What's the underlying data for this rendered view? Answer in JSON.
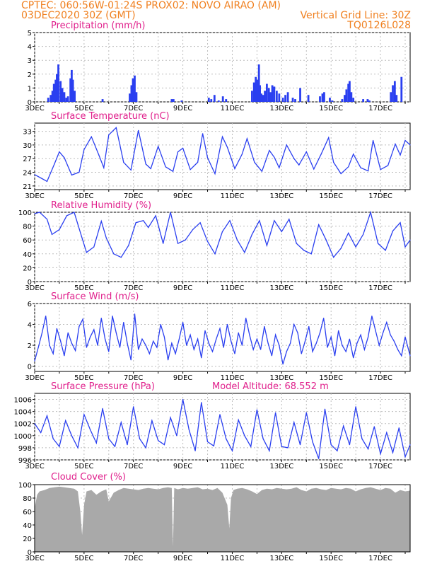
{
  "header": {
    "line1_left": "CPTEC:   060:56W-01:24S   PROX02: NOVO AIRAO (AM)",
    "line2_left": "03DEC2020 30Z (GMT)",
    "line2_right": "Vertical Grid Line: 30Z",
    "line3_right": "TQ0126L028"
  },
  "colors": {
    "header": "#f08020",
    "title": "#e0208c",
    "series": "#2a3ff0",
    "cloud": "#a9a9a9",
    "grid": "#bdbdbd"
  },
  "chart_data": [
    {
      "id": "precip",
      "type": "bar",
      "title": "Precipitation (mm/h)",
      "extra_label": "",
      "ylim": [
        0,
        5
      ],
      "yticks": [
        0,
        1,
        2,
        3,
        4,
        5
      ],
      "x_day_range": [
        3,
        18.2
      ],
      "xtick_labels": [
        "3DEC",
        "5DEC",
        "7DEC",
        "9DEC",
        "11DEC",
        "13DEC",
        "15DEC",
        "17DEC"
      ],
      "xtick_days": [
        3,
        5,
        7,
        9,
        11,
        13,
        15,
        17
      ],
      "x": [
        3.55,
        3.65,
        3.72,
        3.78,
        3.85,
        3.9,
        3.96,
        4.05,
        4.12,
        4.2,
        4.28,
        4.35,
        4.45,
        4.5,
        4.55,
        4.62,
        5.75,
        6.85,
        6.92,
        6.98,
        7.05,
        7.12,
        8.55,
        8.62,
        8.95,
        10.05,
        10.15,
        10.28,
        10.45,
        10.62,
        10.75,
        11.8,
        11.88,
        11.95,
        12.02,
        12.08,
        12.12,
        12.18,
        12.25,
        12.32,
        12.4,
        12.48,
        12.55,
        12.62,
        12.7,
        12.8,
        12.9,
        13.05,
        13.15,
        13.25,
        13.45,
        13.55,
        13.75,
        14.08,
        14.55,
        14.65,
        14.72,
        14.95,
        15.05,
        15.45,
        15.55,
        15.62,
        15.7,
        15.75,
        15.82,
        15.9,
        16.3,
        16.48,
        16.55,
        17.42,
        17.5,
        17.58,
        17.65,
        17.85
      ],
      "values": [
        0.3,
        0.5,
        0.8,
        1.3,
        1.6,
        2.0,
        2.7,
        1.5,
        1.0,
        0.7,
        0.3,
        0.4,
        1.7,
        2.3,
        1.6,
        0.8,
        0.2,
        0.6,
        1.2,
        1.7,
        1.9,
        0.7,
        0.2,
        0.2,
        0.1,
        0.3,
        0.2,
        0.5,
        0.1,
        0.4,
        0.2,
        0.8,
        1.4,
        1.8,
        1.6,
        2.7,
        1.2,
        0.6,
        0.5,
        0.8,
        1.3,
        1.0,
        0.7,
        1.2,
        1.1,
        0.8,
        0.6,
        0.3,
        0.5,
        0.7,
        0.3,
        0.2,
        1.0,
        0.5,
        0.4,
        0.6,
        0.7,
        0.3,
        0.1,
        0.2,
        0.5,
        0.9,
        1.3,
        1.5,
        0.7,
        0.3,
        0.2,
        0.2,
        0.1,
        0.7,
        1.2,
        1.5,
        0.5,
        1.8
      ]
    },
    {
      "id": "temp",
      "type": "line",
      "title": "Surface Temperature (nC)",
      "extra_label": "",
      "ylim": [
        20.2,
        34.8
      ],
      "yticks": [
        21,
        24,
        27,
        30,
        33
      ],
      "x_day_range": [
        3,
        18.2
      ],
      "xtick_labels": [
        "3DEC",
        "5DEC",
        "7DEC",
        "9DEC",
        "11DEC",
        "13DEC",
        "15DEC",
        "17DEC"
      ],
      "xtick_days": [
        3,
        5,
        7,
        9,
        11,
        13,
        15,
        17
      ],
      "x": [
        3,
        3.3,
        3.5,
        3.8,
        4,
        4.2,
        4.5,
        4.8,
        5,
        5.3,
        5.6,
        5.8,
        6,
        6.3,
        6.6,
        6.9,
        7.2,
        7.5,
        7.7,
        8,
        8.3,
        8.6,
        8.8,
        9,
        9.3,
        9.6,
        9.8,
        10,
        10.3,
        10.6,
        10.8,
        11.1,
        11.4,
        11.6,
        11.9,
        12.2,
        12.5,
        12.7,
        12.9,
        13.2,
        13.5,
        13.7,
        14,
        14.3,
        14.6,
        14.9,
        15.1,
        15.4,
        15.7,
        15.9,
        16.2,
        16.5,
        16.7,
        17,
        17.3,
        17.6,
        17.8,
        18,
        18.2
      ],
      "values": [
        23.5,
        22.6,
        22,
        25.8,
        28.5,
        27.2,
        23.4,
        24,
        29,
        31.8,
        27.8,
        25,
        32.2,
        33.8,
        26.2,
        24.5,
        33.2,
        25.8,
        24.8,
        29.7,
        25.2,
        24.2,
        28.5,
        29.3,
        24.6,
        26.2,
        32.5,
        27.2,
        23.7,
        31.8,
        29.5,
        24.8,
        28,
        31.4,
        26.2,
        24.2,
        28.8,
        27.3,
        25,
        30,
        27,
        25.6,
        28.5,
        24.7,
        28,
        31.6,
        26.2,
        23.7,
        25.2,
        28,
        25,
        24.3,
        31,
        24.6,
        25.5,
        30.2,
        27.8,
        31,
        30
      ]
    },
    {
      "id": "rh",
      "type": "line",
      "title": "Relative Humidity (%)",
      "extra_label": "",
      "ylim": [
        0,
        100
      ],
      "yticks": [
        0,
        20,
        40,
        60,
        80,
        100
      ],
      "x_day_range": [
        3,
        18.2
      ],
      "xtick_labels": [
        "3DEC",
        "5DEC",
        "7DEC",
        "9DEC",
        "11DEC",
        "13DEC",
        "15DEC",
        "17DEC"
      ],
      "xtick_days": [
        3,
        5,
        7,
        9,
        11,
        13,
        15,
        17
      ],
      "x": [
        3,
        3.2,
        3.5,
        3.7,
        4,
        4.3,
        4.6,
        4.9,
        5.1,
        5.4,
        5.7,
        5.9,
        6.2,
        6.5,
        6.8,
        7.1,
        7.4,
        7.6,
        7.9,
        8.2,
        8.5,
        8.8,
        9.1,
        9.4,
        9.7,
        10,
        10.3,
        10.6,
        10.9,
        11.2,
        11.5,
        11.8,
        12.1,
        12.4,
        12.7,
        13,
        13.3,
        13.6,
        13.9,
        14.2,
        14.5,
        14.8,
        15.1,
        15.4,
        15.7,
        16,
        16.3,
        16.6,
        16.9,
        17.2,
        17.5,
        17.8,
        18,
        18.2
      ],
      "values": [
        98,
        100,
        90,
        68,
        75,
        95,
        100,
        65,
        42,
        50,
        87,
        63,
        40,
        35,
        52,
        85,
        88,
        78,
        95,
        55,
        100,
        55,
        60,
        75,
        85,
        58,
        40,
        72,
        88,
        60,
        42,
        68,
        88,
        52,
        88,
        72,
        90,
        55,
        45,
        40,
        82,
        60,
        35,
        48,
        70,
        50,
        68,
        100,
        55,
        45,
        73,
        85,
        50,
        60
      ]
    },
    {
      "id": "wind",
      "type": "line",
      "title": "Surface Wind (m/s)",
      "extra_label": "",
      "ylim": [
        -0.5,
        6
      ],
      "yticks": [
        0,
        2,
        4,
        6
      ],
      "x_day_range": [
        3,
        18.2
      ],
      "xtick_labels": [
        "3DEC",
        "5DEC",
        "7DEC",
        "9DEC",
        "11DEC",
        "13DEC",
        "15DEC",
        "17DEC"
      ],
      "xtick_days": [
        3,
        5,
        7,
        9,
        11,
        13,
        15,
        17
      ],
      "x": [
        3,
        3.15,
        3.3,
        3.45,
        3.6,
        3.75,
        3.9,
        4.05,
        4.2,
        4.35,
        4.5,
        4.65,
        4.8,
        4.95,
        5.1,
        5.25,
        5.4,
        5.55,
        5.7,
        5.85,
        6,
        6.15,
        6.3,
        6.45,
        6.6,
        6.75,
        6.9,
        7.05,
        7.2,
        7.35,
        7.5,
        7.65,
        7.8,
        7.95,
        8.1,
        8.25,
        8.4,
        8.55,
        8.7,
        8.85,
        9,
        9.15,
        9.3,
        9.45,
        9.6,
        9.75,
        9.9,
        10.05,
        10.2,
        10.35,
        10.5,
        10.65,
        10.8,
        10.95,
        11.1,
        11.25,
        11.4,
        11.55,
        11.7,
        11.85,
        12,
        12.15,
        12.3,
        12.45,
        12.6,
        12.75,
        12.9,
        13.05,
        13.2,
        13.35,
        13.5,
        13.65,
        13.8,
        13.95,
        14.1,
        14.25,
        14.4,
        14.55,
        14.7,
        14.85,
        15,
        15.15,
        15.3,
        15.45,
        15.6,
        15.75,
        15.9,
        16.05,
        16.2,
        16.35,
        16.5,
        16.65,
        16.8,
        16.95,
        17.1,
        17.25,
        17.4,
        17.55,
        17.7,
        17.85,
        18,
        18.2
      ],
      "values": [
        0.5,
        1.8,
        3.2,
        4.8,
        2.0,
        1.2,
        3.6,
        2.4,
        1.0,
        3.2,
        2.2,
        1.5,
        3.8,
        4.5,
        1.8,
        2.8,
        3.5,
        2.0,
        4.6,
        2.6,
        1.4,
        4.8,
        3.2,
        1.8,
        4.2,
        2.2,
        0.6,
        5.0,
        1.6,
        2.6,
        2.0,
        1.2,
        2.4,
        1.8,
        4.0,
        2.8,
        0.6,
        2.2,
        1.2,
        2.6,
        4.2,
        2.0,
        3.0,
        1.6,
        2.6,
        0.8,
        3.4,
        2.2,
        1.4,
        2.6,
        3.6,
        1.8,
        4.0,
        2.4,
        1.2,
        3.2,
        2.0,
        4.6,
        3.0,
        1.6,
        2.6,
        1.6,
        3.8,
        2.2,
        1.0,
        3.0,
        2.0,
        0.2,
        1.4,
        2.2,
        4.0,
        3.2,
        1.2,
        2.4,
        3.8,
        1.4,
        2.2,
        3.2,
        4.6,
        1.8,
        2.8,
        1.0,
        3.4,
        2.0,
        1.4,
        2.6,
        0.8,
        2.2,
        3.0,
        1.6,
        2.8,
        4.8,
        3.4,
        2.0,
        3.2,
        4.2,
        3.0,
        2.4,
        1.6,
        1.0,
        2.8,
        1.0
      ]
    },
    {
      "id": "pres",
      "type": "line",
      "title": "Surface Pressure (hPa)",
      "extra_label": "Model Altitude: 68.552 m",
      "ylim": [
        996,
        1007
      ],
      "yticks": [
        996,
        998,
        1000,
        1002,
        1004,
        1006
      ],
      "x_day_range": [
        3,
        18.2
      ],
      "xtick_labels": [
        "3DEC",
        "5DEC",
        "7DEC",
        "9DEC",
        "11DEC",
        "13DEC",
        "15DEC",
        "17DEC"
      ],
      "xtick_days": [
        3,
        5,
        7,
        9,
        11,
        13,
        15,
        17
      ],
      "x": [
        3,
        3.25,
        3.5,
        3.75,
        4,
        4.25,
        4.5,
        4.75,
        5,
        5.25,
        5.5,
        5.75,
        6,
        6.25,
        6.5,
        6.75,
        7,
        7.25,
        7.5,
        7.75,
        8,
        8.25,
        8.5,
        8.75,
        9,
        9.25,
        9.5,
        9.75,
        10,
        10.25,
        10.5,
        10.75,
        11,
        11.25,
        11.5,
        11.75,
        12,
        12.25,
        12.5,
        12.75,
        13,
        13.25,
        13.5,
        13.75,
        14,
        14.25,
        14.5,
        14.75,
        15,
        15.25,
        15.5,
        15.75,
        16,
        16.25,
        16.5,
        16.75,
        17,
        17.25,
        17.5,
        17.75,
        18,
        18.2
      ],
      "values": [
        1002,
        1000.5,
        1003.3,
        999.5,
        998.2,
        1002.5,
        1000,
        998,
        1003.5,
        1001,
        998.8,
        1004.5,
        999.5,
        998.2,
        1002.2,
        998.5,
        1004.8,
        999.5,
        998,
        1002.5,
        999.2,
        998.5,
        1003,
        1000,
        1006,
        1001,
        997.5,
        1005.5,
        999,
        998.3,
        1003.5,
        999.5,
        997.5,
        1002.6,
        1000,
        998.2,
        1004.3,
        999.5,
        997.5,
        1003.8,
        998.2,
        998,
        1002.2,
        998.5,
        1003.8,
        999,
        996.2,
        1004.4,
        998.5,
        997.5,
        1001.6,
        998.5,
        1004.8,
        999.5,
        997.8,
        1001.5,
        997,
        1000.5,
        997.2,
        1001.3,
        996.5,
        998.5
      ]
    },
    {
      "id": "cloud",
      "type": "area",
      "title": "Cloud Cover (%)",
      "extra_label": "",
      "ylim": [
        0,
        100
      ],
      "yticks": [
        0,
        20,
        40,
        60,
        80,
        100
      ],
      "x_day_range": [
        3,
        18.2
      ],
      "xtick_labels": [
        "3DEC",
        "5DEC",
        "7DEC",
        "9DEC",
        "11DEC",
        "13DEC",
        "15DEC",
        "17DEC"
      ],
      "xtick_days": [
        3,
        5,
        7,
        9,
        11,
        13,
        15,
        17
      ],
      "x": [
        3,
        3.1,
        3.2,
        3.4,
        3.6,
        3.8,
        4,
        4.2,
        4.4,
        4.6,
        4.75,
        4.85,
        4.92,
        5,
        5.1,
        5.3,
        5.5,
        5.7,
        5.9,
        6,
        6.2,
        6.4,
        6.6,
        6.8,
        7,
        7.2,
        7.4,
        7.6,
        7.8,
        8,
        8.2,
        8.4,
        8.55,
        8.6,
        8.65,
        8.8,
        9,
        9.2,
        9.4,
        9.6,
        9.8,
        10,
        10.2,
        10.4,
        10.6,
        10.8,
        10.88,
        10.95,
        11.05,
        11.2,
        11.4,
        11.6,
        11.8,
        12,
        12.2,
        12.4,
        12.6,
        12.8,
        13,
        13.2,
        13.4,
        13.6,
        13.8,
        14,
        14.2,
        14.4,
        14.6,
        14.8,
        15,
        15.2,
        15.4,
        15.6,
        15.8,
        16,
        16.2,
        16.4,
        16.6,
        16.8,
        17,
        17.2,
        17.4,
        17.6,
        17.8,
        18,
        18.2
      ],
      "values": [
        65,
        85,
        90,
        92,
        95,
        96,
        97,
        96,
        95,
        94,
        90,
        60,
        25,
        70,
        90,
        92,
        85,
        90,
        93,
        75,
        88,
        92,
        95,
        94,
        93,
        92,
        94,
        95,
        94,
        93,
        95,
        96,
        95,
        8,
        95,
        93,
        95,
        94,
        95,
        96,
        93,
        94,
        92,
        95,
        88,
        70,
        35,
        80,
        92,
        94,
        95,
        93,
        90,
        86,
        92,
        94,
        93,
        95,
        94,
        93,
        94,
        96,
        92,
        90,
        94,
        95,
        93,
        92,
        95,
        94,
        93,
        95,
        94,
        90,
        93,
        95,
        96,
        94,
        92,
        95,
        94,
        88,
        92,
        90,
        91
      ]
    }
  ]
}
